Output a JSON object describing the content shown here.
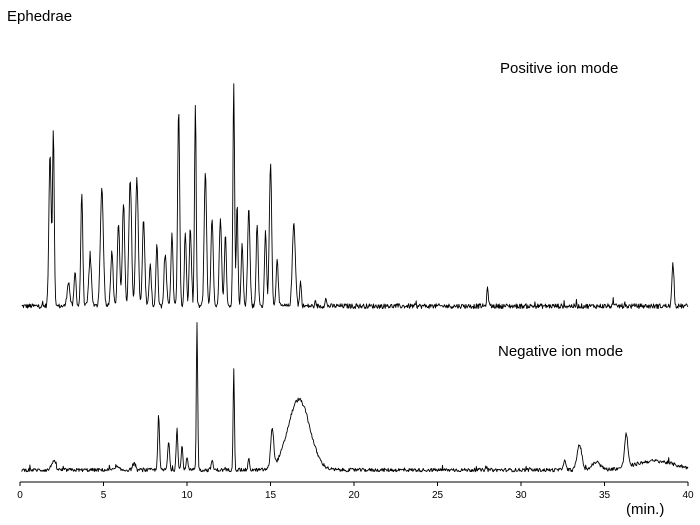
{
  "chart_data": {
    "type": "line",
    "title": "Ephedrae",
    "xlabel": "(min.)",
    "xlim": [
      0,
      40
    ],
    "x_ticks": [
      0,
      5,
      10,
      15,
      20,
      25,
      30,
      35,
      40
    ],
    "grid": false,
    "series": [
      {
        "name": "Positive ion mode",
        "color": "#000000",
        "baseline": 0.02,
        "peaks": [
          [
            1.8,
            0.62,
            0.07
          ],
          [
            2.0,
            0.72,
            0.05
          ],
          [
            2.9,
            0.1,
            0.08
          ],
          [
            3.3,
            0.14,
            0.06
          ],
          [
            3.7,
            0.46,
            0.06
          ],
          [
            4.2,
            0.2,
            0.08
          ],
          [
            4.9,
            0.48,
            0.09
          ],
          [
            5.5,
            0.22,
            0.07
          ],
          [
            5.9,
            0.34,
            0.07
          ],
          [
            6.2,
            0.42,
            0.07
          ],
          [
            6.6,
            0.52,
            0.08
          ],
          [
            7.0,
            0.52,
            0.08
          ],
          [
            7.4,
            0.36,
            0.07
          ],
          [
            7.8,
            0.18,
            0.06
          ],
          [
            8.2,
            0.25,
            0.06
          ],
          [
            8.7,
            0.22,
            0.07
          ],
          [
            9.1,
            0.3,
            0.06
          ],
          [
            9.5,
            0.8,
            0.06
          ],
          [
            9.9,
            0.3,
            0.06
          ],
          [
            10.2,
            0.32,
            0.06
          ],
          [
            10.5,
            0.82,
            0.05
          ],
          [
            11.1,
            0.55,
            0.07
          ],
          [
            11.5,
            0.35,
            0.07
          ],
          [
            12.0,
            0.35,
            0.07
          ],
          [
            12.3,
            0.3,
            0.06
          ],
          [
            12.8,
            0.92,
            0.05
          ],
          [
            13.0,
            0.42,
            0.05
          ],
          [
            13.3,
            0.25,
            0.06
          ],
          [
            13.7,
            0.4,
            0.07
          ],
          [
            14.2,
            0.34,
            0.06
          ],
          [
            14.7,
            0.3,
            0.06
          ],
          [
            15.0,
            0.58,
            0.07
          ],
          [
            15.4,
            0.2,
            0.06
          ],
          [
            16.4,
            0.34,
            0.09
          ],
          [
            16.8,
            0.1,
            0.05
          ],
          [
            18.3,
            0.03,
            0.05
          ],
          [
            28.0,
            0.07,
            0.05
          ],
          [
            39.1,
            0.17,
            0.06
          ]
        ]
      },
      {
        "name": "Negative ion mode",
        "color": "#000000",
        "baseline": 0.02,
        "peaks": [
          [
            2.0,
            0.06,
            0.12
          ],
          [
            5.8,
            0.02,
            0.1
          ],
          [
            6.8,
            0.04,
            0.08
          ],
          [
            8.3,
            0.38,
            0.05
          ],
          [
            8.9,
            0.18,
            0.06
          ],
          [
            9.4,
            0.28,
            0.05
          ],
          [
            9.7,
            0.16,
            0.05
          ],
          [
            10.0,
            0.08,
            0.05
          ],
          [
            10.6,
            0.98,
            0.04
          ],
          [
            11.5,
            0.06,
            0.06
          ],
          [
            12.8,
            0.68,
            0.04
          ],
          [
            13.7,
            0.07,
            0.05
          ],
          [
            15.1,
            0.26,
            0.09
          ],
          [
            16.7,
            0.47,
            0.65
          ],
          [
            32.6,
            0.06,
            0.08
          ],
          [
            33.5,
            0.17,
            0.14
          ],
          [
            34.5,
            0.05,
            0.25
          ],
          [
            36.3,
            0.22,
            0.1
          ],
          [
            38.0,
            0.06,
            1.2
          ]
        ]
      }
    ]
  }
}
